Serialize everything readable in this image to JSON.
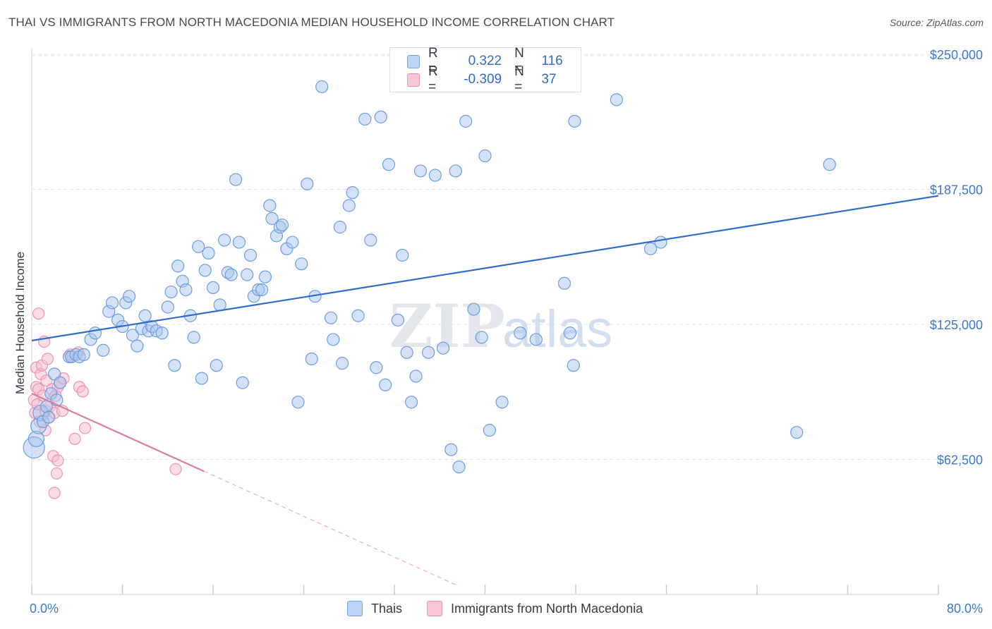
{
  "title": "THAI VS IMMIGRANTS FROM NORTH MACEDONIA MEDIAN HOUSEHOLD INCOME CORRELATION CHART",
  "source": "Source: ZipAtlas.com",
  "watermark": {
    "zip": "ZIP",
    "atlas": "atlas"
  },
  "legend_box": {
    "rows": [
      {
        "r_label": "R =",
        "r_value": "0.322",
        "n_label": "N =",
        "n_value": "116",
        "color": "#6fa3e6",
        "fill": "#bcd4f5"
      },
      {
        "r_label": "R =",
        "r_value": "-0.309",
        "n_label": "N =",
        "n_value": "37",
        "color": "#e98fb0",
        "fill": "#f8c6d6"
      }
    ]
  },
  "bottom_legend": [
    "Thais",
    "Immigrants from North Macedonia"
  ],
  "colors": {
    "blue": "#2f6cc9",
    "blue_fill": "#a9c6ef",
    "blue_stroke": "#6d9ee0",
    "pink": "#e07aa0",
    "pink_fill": "#f6bfd1",
    "pink_stroke": "#ec93b3",
    "grid": "#dfe3e8",
    "axis_text": "#3a78d1"
  },
  "chart_data": {
    "type": "scatter",
    "title": "THAI VS IMMIGRANTS FROM NORTH MACEDONIA MEDIAN HOUSEHOLD INCOME CORRELATION CHART",
    "ylabel": "Median Household Income",
    "xlabel": "",
    "xlim": [
      0,
      80
    ],
    "ylim": [
      0,
      270000
    ],
    "x_tick_labels": [
      "0.0%",
      "80.0%"
    ],
    "y_ticks": [
      62500,
      125000,
      187500,
      250000
    ],
    "y_tick_labels": [
      "$62,500",
      "$125,000",
      "$187,500",
      "$250,000"
    ],
    "grid": true,
    "series": [
      {
        "name": "Thais",
        "r": 0.322,
        "n": 116,
        "trend": {
          "x0": 0,
          "y0": 117500,
          "x1": 80,
          "y1": 184500
        },
        "points": [
          [
            0.2,
            68000
          ],
          [
            0.4,
            72000
          ],
          [
            0.6,
            78000
          ],
          [
            0.8,
            84000
          ],
          [
            1.0,
            80000
          ],
          [
            1.3,
            87000
          ],
          [
            1.5,
            82000
          ],
          [
            1.7,
            93000
          ],
          [
            2.0,
            102000
          ],
          [
            2.2,
            90000
          ],
          [
            2.5,
            98000
          ],
          [
            3.3,
            110000
          ],
          [
            3.5,
            110000
          ],
          [
            3.9,
            111000
          ],
          [
            4.2,
            110000
          ],
          [
            4.6,
            111000
          ],
          [
            5.2,
            118000
          ],
          [
            5.6,
            121000
          ],
          [
            6.3,
            113000
          ],
          [
            6.8,
            131000
          ],
          [
            7.1,
            135000
          ],
          [
            7.6,
            127000
          ],
          [
            8.0,
            124000
          ],
          [
            8.3,
            135000
          ],
          [
            8.6,
            138000
          ],
          [
            8.9,
            120000
          ],
          [
            9.3,
            115000
          ],
          [
            9.7,
            123000
          ],
          [
            10.0,
            129000
          ],
          [
            10.3,
            122000
          ],
          [
            10.6,
            124000
          ],
          [
            11.0,
            122000
          ],
          [
            11.5,
            121000
          ],
          [
            12.0,
            133000
          ],
          [
            12.3,
            140000
          ],
          [
            12.6,
            106000
          ],
          [
            12.9,
            152000
          ],
          [
            13.3,
            145000
          ],
          [
            13.6,
            141000
          ],
          [
            14.0,
            129000
          ],
          [
            14.3,
            119000
          ],
          [
            14.7,
            161000
          ],
          [
            15.0,
            100000
          ],
          [
            15.3,
            150000
          ],
          [
            15.6,
            158000
          ],
          [
            16.0,
            142000
          ],
          [
            16.3,
            106000
          ],
          [
            16.6,
            134000
          ],
          [
            17.0,
            164000
          ],
          [
            17.3,
            149000
          ],
          [
            17.6,
            148000
          ],
          [
            18.0,
            192000
          ],
          [
            18.3,
            163000
          ],
          [
            18.6,
            98000
          ],
          [
            19.0,
            148000
          ],
          [
            19.3,
            157000
          ],
          [
            19.6,
            138000
          ],
          [
            20.0,
            141000
          ],
          [
            20.3,
            141000
          ],
          [
            20.6,
            147000
          ],
          [
            21.0,
            180000
          ],
          [
            21.2,
            174000
          ],
          [
            21.6,
            166000
          ],
          [
            21.9,
            170000
          ],
          [
            22.1,
            171000
          ],
          [
            22.5,
            160000
          ],
          [
            23.0,
            163000
          ],
          [
            23.5,
            89000
          ],
          [
            23.8,
            153000
          ],
          [
            24.3,
            190000
          ],
          [
            24.7,
            109000
          ],
          [
            25.0,
            138000
          ],
          [
            25.6,
            235000
          ],
          [
            26.4,
            128000
          ],
          [
            26.6,
            118000
          ],
          [
            27.2,
            170000
          ],
          [
            27.4,
            107000
          ],
          [
            28.0,
            180000
          ],
          [
            28.3,
            186000
          ],
          [
            28.8,
            129000
          ],
          [
            29.4,
            220000
          ],
          [
            29.9,
            164000
          ],
          [
            30.4,
            105000
          ],
          [
            30.8,
            221000
          ],
          [
            31.2,
            97000
          ],
          [
            31.5,
            199000
          ],
          [
            32.3,
            127000
          ],
          [
            32.7,
            157000
          ],
          [
            33.1,
            112000
          ],
          [
            33.5,
            89000
          ],
          [
            33.9,
            101000
          ],
          [
            34.3,
            196000
          ],
          [
            35.0,
            112000
          ],
          [
            35.6,
            194000
          ],
          [
            36.3,
            114000
          ],
          [
            37.0,
            67000
          ],
          [
            37.4,
            196000
          ],
          [
            37.7,
            59000
          ],
          [
            38.3,
            219000
          ],
          [
            39.0,
            132000
          ],
          [
            39.7,
            119000
          ],
          [
            40.0,
            203000
          ],
          [
            40.4,
            76000
          ],
          [
            41.5,
            89000
          ],
          [
            43.1,
            121000
          ],
          [
            44.5,
            118000
          ],
          [
            47.0,
            144000
          ],
          [
            47.5,
            121000
          ],
          [
            47.8,
            106000
          ],
          [
            47.9,
            219000
          ],
          [
            51.6,
            229000
          ],
          [
            54.6,
            160000
          ],
          [
            55.5,
            163000
          ],
          [
            67.5,
            75000
          ],
          [
            70.4,
            199000
          ]
        ]
      },
      {
        "name": "Immigrants from North Macedonia",
        "r": -0.309,
        "n": 37,
        "trend": {
          "x0": 0,
          "y0": 93000,
          "x1": 15.2,
          "y1": 57000,
          "dash_x1": 37.4,
          "dash_y1": 4500
        },
        "points": [
          [
            0.2,
            90000
          ],
          [
            0.3,
            84000
          ],
          [
            0.4,
            96000
          ],
          [
            0.4,
            105000
          ],
          [
            0.5,
            88000
          ],
          [
            0.6,
            95000
          ],
          [
            0.6,
            130000
          ],
          [
            0.7,
            80000
          ],
          [
            0.8,
            102000
          ],
          [
            0.9,
            106000
          ],
          [
            1.0,
            92000
          ],
          [
            1.1,
            117000
          ],
          [
            1.2,
            76000
          ],
          [
            1.2,
            85000
          ],
          [
            1.3,
            99000
          ],
          [
            1.4,
            109000
          ],
          [
            1.5,
            82000
          ],
          [
            1.6,
            87000
          ],
          [
            1.8,
            95000
          ],
          [
            1.9,
            64000
          ],
          [
            2.0,
            47000
          ],
          [
            2.0,
            84000
          ],
          [
            2.1,
            92000
          ],
          [
            2.2,
            56000
          ],
          [
            2.3,
            62000
          ],
          [
            2.3,
            96000
          ],
          [
            2.5,
            98000
          ],
          [
            2.7,
            85000
          ],
          [
            2.8,
            100000
          ],
          [
            3.4,
            111000
          ],
          [
            3.6,
            110000
          ],
          [
            3.8,
            72000
          ],
          [
            4.1,
            112000
          ],
          [
            4.2,
            96000
          ],
          [
            4.5,
            94000
          ],
          [
            4.7,
            77000
          ],
          [
            12.7,
            58000
          ]
        ]
      }
    ]
  }
}
